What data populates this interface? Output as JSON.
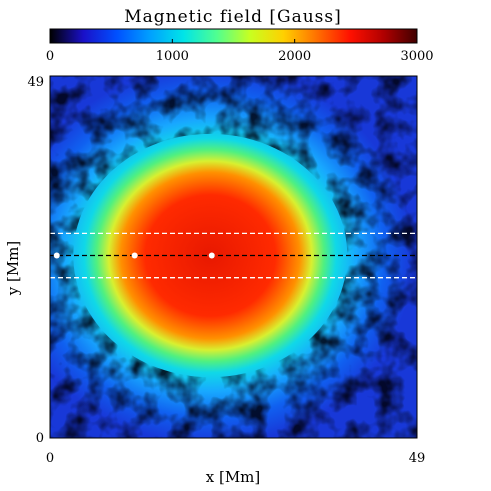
{
  "chart_data": {
    "type": "heatmap",
    "title": "Magnetic field [Gauss]",
    "colorbar": {
      "min": 0,
      "max": 3000,
      "ticks": [
        0,
        1000,
        2000,
        3000
      ],
      "tick_labels": [
        "0",
        "1000",
        "2000",
        "3000"
      ],
      "colormap": [
        "#000000",
        "#1a10c8",
        "#0050ff",
        "#00a0ff",
        "#00e4e8",
        "#50ff90",
        "#c8ff20",
        "#ffd000",
        "#ff7000",
        "#ff1000",
        "#b00000",
        "#400000"
      ]
    },
    "xlabel": "x [Mm]",
    "ylabel": "y [Mm]",
    "xlim": [
      0,
      49
    ],
    "ylim": [
      0,
      49
    ],
    "x_tick_labels": [
      "0",
      "49"
    ],
    "y_tick_labels": [
      "0",
      "49"
    ],
    "field": {
      "umbra_center": [
        21.4,
        24.7
      ],
      "umbra_radius_x": 15.5,
      "umbra_radius_y": 13.5,
      "peak_gauss": 2800,
      "penumbra_gauss": 1000
    },
    "slit_lines": [
      {
        "y": 27.7,
        "color": "#ffffff",
        "style": "dashed"
      },
      {
        "y": 24.7,
        "color": "#000000",
        "style": "dashed"
      },
      {
        "y": 21.7,
        "color": "#ffffff",
        "style": "dashed"
      }
    ],
    "markers": [
      {
        "x": 0.9,
        "y": 24.7,
        "color": "#ffffff"
      },
      {
        "x": 11.3,
        "y": 24.7,
        "color": "#ffffff"
      },
      {
        "x": 21.6,
        "y": 24.7,
        "color": "#ffffff"
      }
    ]
  }
}
